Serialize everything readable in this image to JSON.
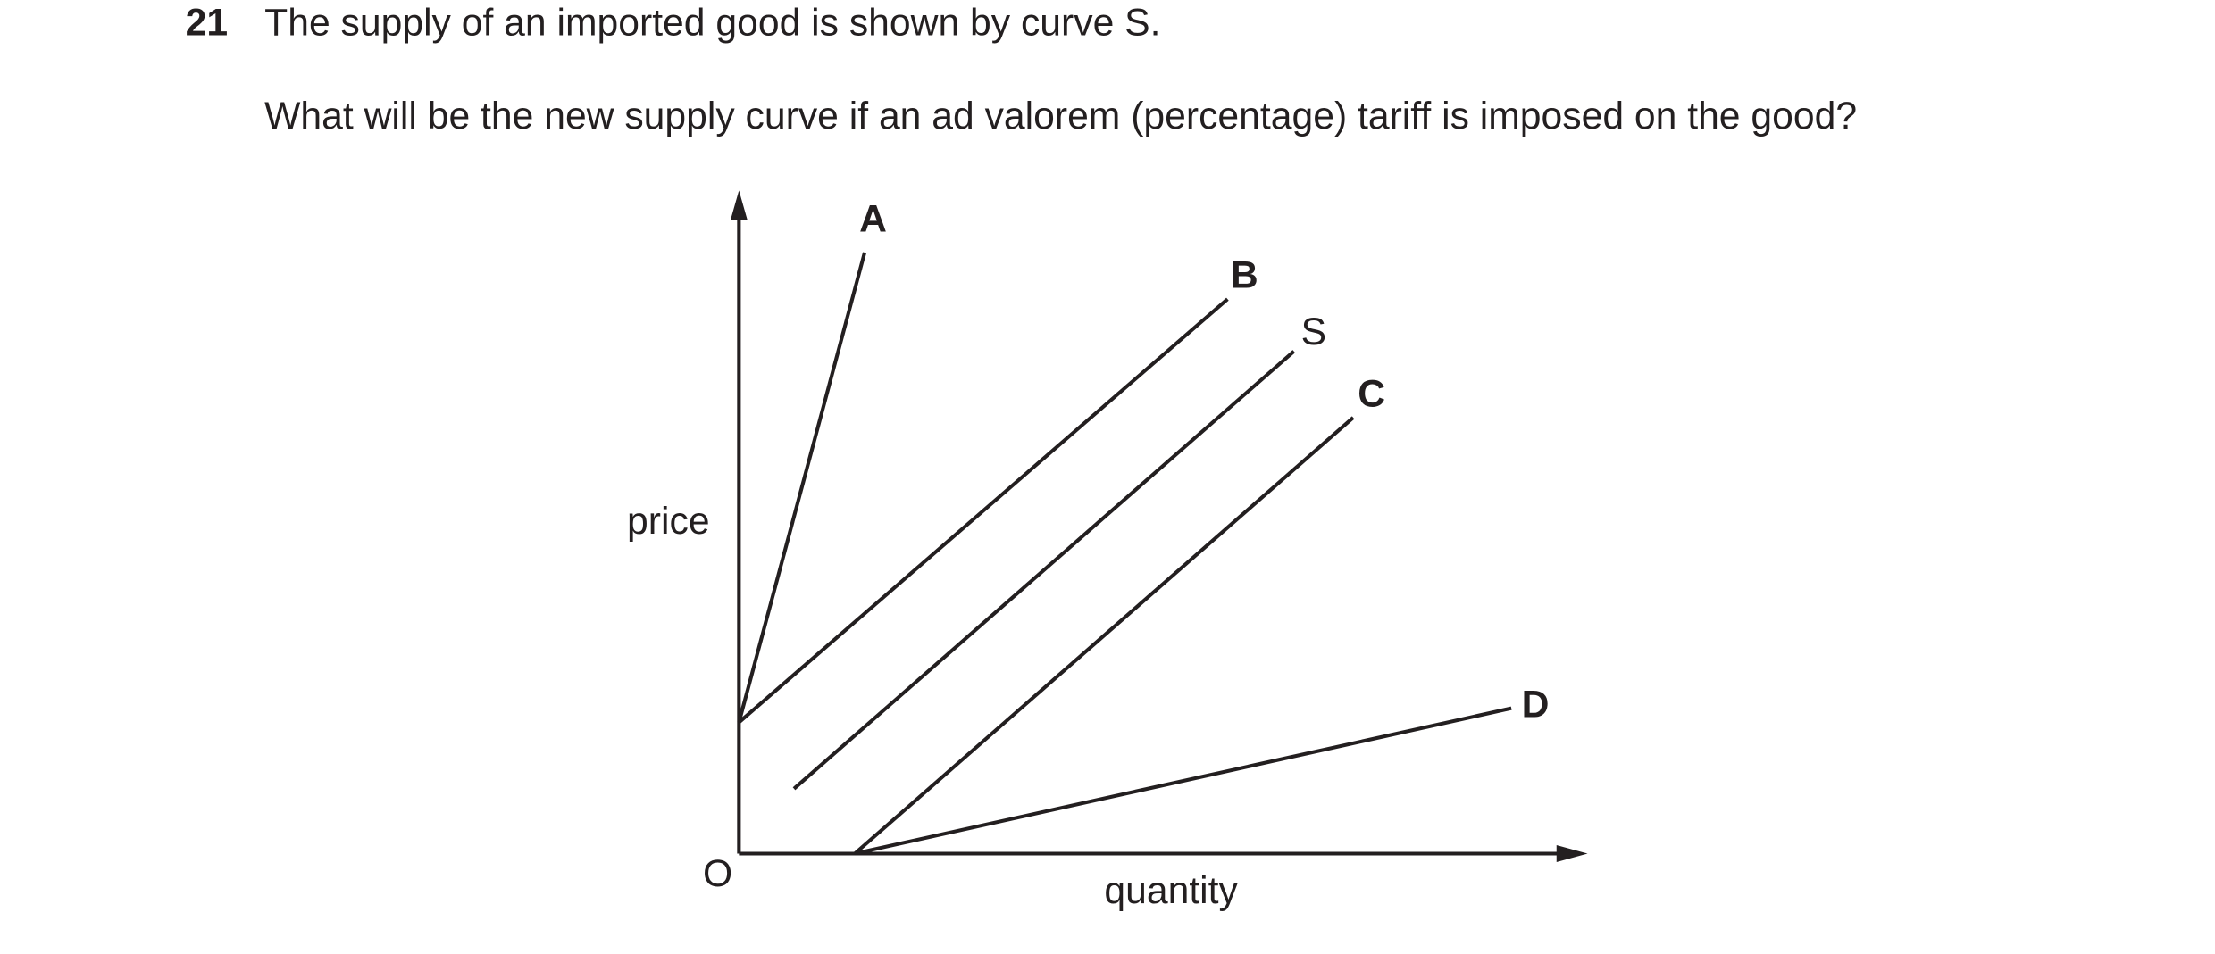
{
  "question": {
    "number": "21",
    "text": "The supply of an imported good is shown by curve S.",
    "prompt": "What will be the new supply curve if an ad valorem (percentage) tariff is imposed on the good?"
  },
  "diagram": {
    "y_axis_label": "price",
    "x_axis_label": "quantity",
    "origin_label": "O",
    "curves": [
      {
        "label": "A"
      },
      {
        "label": "B"
      },
      {
        "label": "S"
      },
      {
        "label": "C"
      },
      {
        "label": "D"
      }
    ]
  }
}
